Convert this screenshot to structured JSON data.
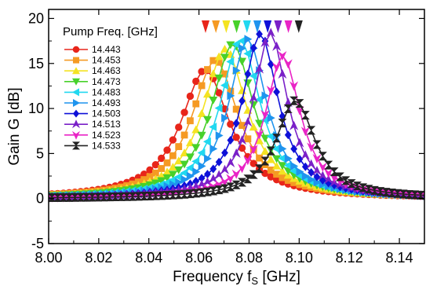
{
  "chart_data": {
    "type": "line",
    "xlabel": "Frequency f",
    "xlabel_sub": "S",
    "xlabel_unit": " [GHz]",
    "ylabel": "Gain G [dB]",
    "xlim": [
      8.0,
      8.15
    ],
    "ylim": [
      -5,
      21
    ],
    "x_ticks": [
      8.0,
      8.02,
      8.04,
      8.06,
      8.08,
      8.1,
      8.12,
      8.14
    ],
    "x_tick_labels": [
      "8.00",
      "8.02",
      "8.04",
      "8.06",
      "8.08",
      "8.10",
      "8.12",
      "8.14"
    ],
    "y_ticks": [
      -5,
      0,
      5,
      10,
      15,
      20
    ],
    "y_tick_labels": [
      "-5",
      "0",
      "5",
      "10",
      "15",
      "20"
    ],
    "legend": {
      "title": "Pump Freq. [GHz]",
      "placement": "top-left"
    },
    "grid": false,
    "series": [
      {
        "name": "14.443",
        "color": "#e8251a",
        "marker": "circle",
        "peak_x": 8.0625,
        "peak_y": 14.3,
        "hw": 0.0118,
        "base": 0.0
      },
      {
        "name": "14.453",
        "color": "#f59a23",
        "marker": "square",
        "peak_x": 8.0665,
        "peak_y": 15.4,
        "hw": 0.0113,
        "base": 0.0
      },
      {
        "name": "14.463",
        "color": "#f4e322",
        "marker": "triangle-up",
        "peak_x": 8.0705,
        "peak_y": 16.6,
        "hw": 0.0108,
        "base": 0.0
      },
      {
        "name": "14.473",
        "color": "#47d12a",
        "marker": "triangle-down",
        "peak_x": 8.0735,
        "peak_y": 17.2,
        "hw": 0.0103,
        "base": 0.0
      },
      {
        "name": "14.483",
        "color": "#21d8f0",
        "marker": "triangle-left",
        "peak_x": 8.0765,
        "peak_y": 17.6,
        "hw": 0.0098,
        "base": 0.0
      },
      {
        "name": "14.493",
        "color": "#1f94ee",
        "marker": "triangle-right",
        "peak_x": 8.0795,
        "peak_y": 17.7,
        "hw": 0.0093,
        "base": 0.0
      },
      {
        "name": "14.503",
        "color": "#0e10d8",
        "marker": "diamond",
        "peak_x": 8.0845,
        "peak_y": 18.3,
        "hw": 0.0088,
        "base": 0.0
      },
      {
        "name": "14.513",
        "color": "#7a20c8",
        "marker": "flag",
        "peak_x": 8.0885,
        "peak_y": 18.4,
        "hw": 0.0083,
        "base": 0.0
      },
      {
        "name": "14.523",
        "color": "#e924c6",
        "marker": "flag-down",
        "peak_x": 8.0935,
        "peak_y": 15.9,
        "hw": 0.0085,
        "base": 0.0
      },
      {
        "name": "14.533",
        "color": "#222222",
        "marker": "bowtie",
        "peak_x": 8.0985,
        "peak_y": 10.9,
        "hw": 0.0095,
        "base": 0.0
      }
    ],
    "top_arrows": [
      "#e8251a",
      "#f59a23",
      "#f4e322",
      "#47d12a",
      "#21d8f0",
      "#1f94ee",
      "#0e10d8",
      "#7a20c8",
      "#e924c6",
      "#222222"
    ]
  }
}
